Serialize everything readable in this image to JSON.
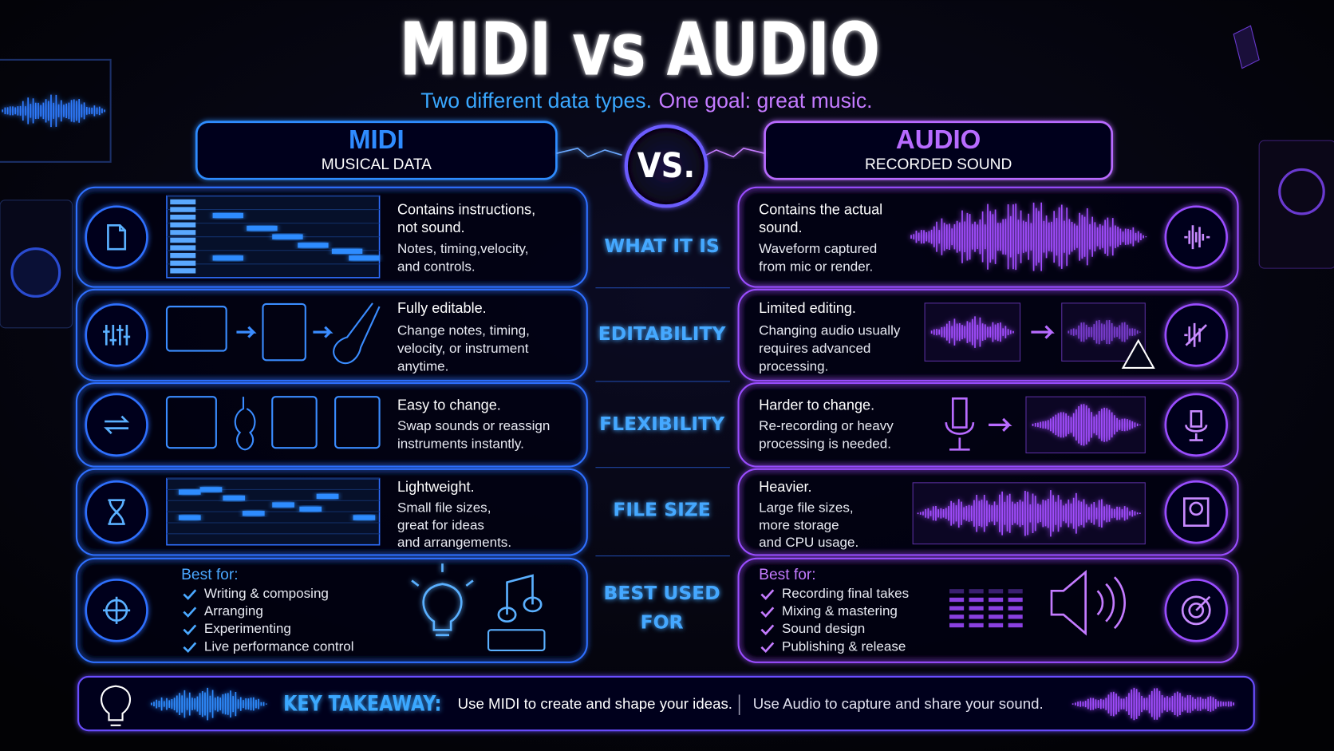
{
  "title": "MIDI vs AUDIO",
  "subtitle": {
    "part1": "Two different data types.",
    "part2": "One goal: great music."
  },
  "midi_header": {
    "title": "MIDI",
    "subtitle": "MUSICAL DATA"
  },
  "vs": "VS.",
  "audio_header": {
    "title": "AUDIO",
    "subtitle": "RECORDED SOUND"
  },
  "rows": [
    {
      "label": [
        "WHAT IT IS"
      ],
      "midi": {
        "heading": [
          "Contains instructions,",
          "not sound."
        ],
        "body": [
          "Notes, timing,velocity,",
          "and controls."
        ]
      },
      "audio": {
        "heading": [
          "Contains the actual",
          "sound."
        ],
        "body": [
          "Waveform captured",
          "from mic or render."
        ]
      }
    },
    {
      "label": [
        "EDITABILITY"
      ],
      "midi": {
        "heading": [
          "Fully editable."
        ],
        "body": [
          "Change notes, timing,",
          "velocity, or instrument",
          "anytime."
        ]
      },
      "audio": {
        "heading": [
          "Limited editing."
        ],
        "body": [
          "Changing audio usually",
          "requires advanced",
          "processing."
        ]
      }
    },
    {
      "label": [
        "FLEXIBILITY"
      ],
      "midi": {
        "heading": [
          "Easy to change."
        ],
        "body": [
          "Swap sounds or reassign",
          "instruments instantly."
        ]
      },
      "audio": {
        "heading": [
          "Harder to change."
        ],
        "body": [
          "Re-recording or heavy",
          "processing is needed."
        ]
      }
    },
    {
      "label": [
        "FILE SIZE"
      ],
      "midi": {
        "heading": [
          "Lightweight."
        ],
        "body": [
          "Small file sizes,",
          "great for ideas",
          "and arrangements."
        ]
      },
      "audio": {
        "heading": [
          "Heavier."
        ],
        "body": [
          "Large file sizes,",
          "more storage",
          "and CPU usage."
        ]
      }
    }
  ],
  "best_for": {
    "label": [
      "BEST USED",
      "FOR"
    ],
    "midi": {
      "title": "Best for:",
      "items": [
        "Writing & composing",
        "Arranging",
        "Experimenting",
        "Live performance control"
      ]
    },
    "audio": {
      "title": "Best for:",
      "items": [
        "Recording final takes",
        "Mixing & mastering",
        "Sound design",
        "Publishing & release"
      ]
    }
  },
  "takeaway": {
    "label": "KEY TAKEAWAY:",
    "midi": "Use MIDI to create and shape your ideas.",
    "audio": "Use Audio to capture and share your sound."
  }
}
